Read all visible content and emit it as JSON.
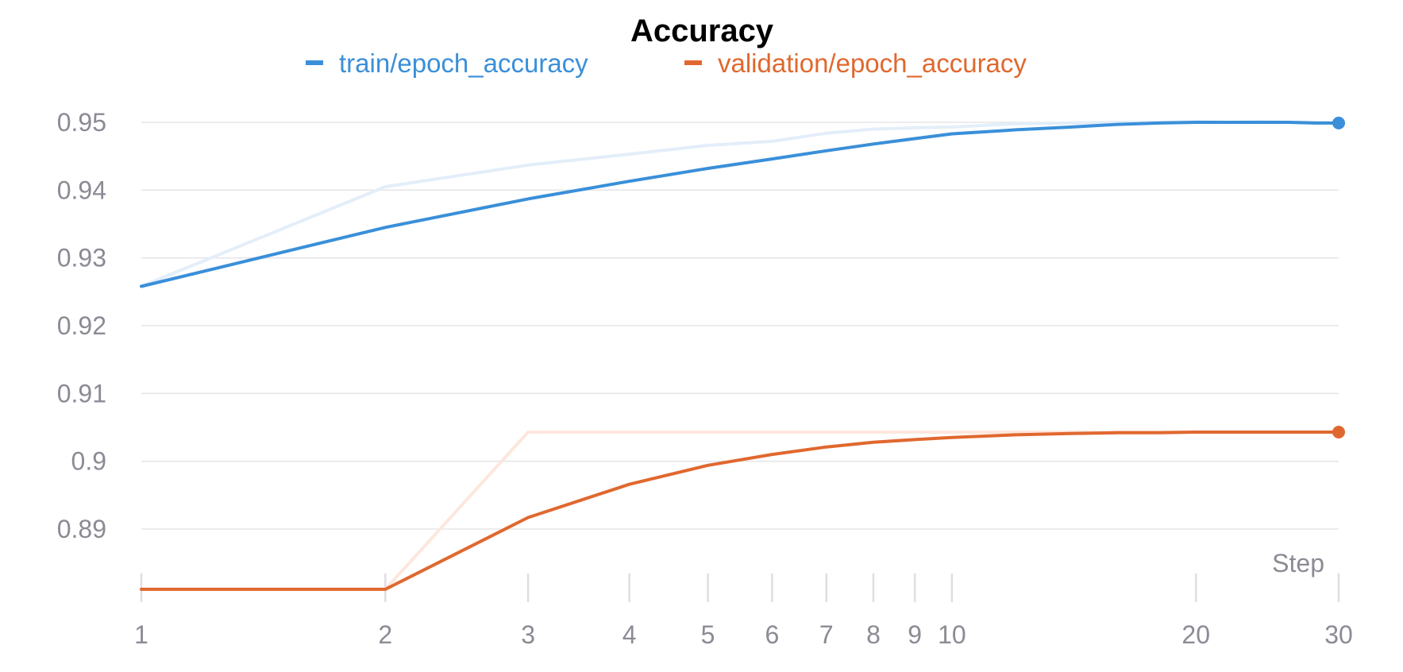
{
  "chart_data": {
    "type": "line",
    "title": "Accuracy",
    "xlabel": "Step",
    "ylabel": "",
    "x_scale": "log",
    "xlim": [
      1,
      30
    ],
    "ylim": [
      0.88,
      0.955
    ],
    "x_ticks": [
      "1",
      "2",
      "3",
      "4",
      "5",
      "6",
      "7",
      "8",
      "9",
      "10",
      "20",
      "30"
    ],
    "y_ticks": [
      "0.89",
      "0.9",
      "0.91",
      "0.92",
      "0.93",
      "0.94",
      "0.95"
    ],
    "grid": true,
    "legend_position": "top",
    "series": [
      {
        "name": "train/epoch_accuracy",
        "color": "#3a8fd9",
        "raw_color": "#e3eef9",
        "smoothed": {
          "x": [
            1,
            2,
            3,
            4,
            5,
            6,
            7,
            8,
            9,
            10,
            12,
            14,
            16,
            18,
            20,
            22,
            24,
            26,
            28,
            30
          ],
          "y": [
            0.9258,
            0.9345,
            0.9387,
            0.9413,
            0.9432,
            0.9446,
            0.9458,
            0.9468,
            0.9476,
            0.9483,
            0.9489,
            0.9493,
            0.9497,
            0.9499,
            0.95,
            0.95,
            0.95,
            0.95,
            0.9499,
            0.9499
          ]
        },
        "raw": {
          "x": [
            1,
            2,
            3,
            4,
            5,
            6,
            7,
            8,
            9,
            10,
            12,
            14,
            16,
            18,
            20,
            22,
            24,
            26,
            28,
            30
          ],
          "y": [
            0.9258,
            0.9405,
            0.9437,
            0.9453,
            0.9466,
            0.9472,
            0.9484,
            0.949,
            0.9492,
            0.9493,
            0.9498,
            0.9499,
            0.95,
            0.95,
            0.9501,
            0.95,
            0.9501,
            0.95,
            0.95,
            0.9499
          ]
        }
      },
      {
        "name": "validation/epoch_accuracy",
        "color": "#e0682f",
        "raw_color": "#fde7dc",
        "smoothed": {
          "x": [
            1,
            2,
            3,
            4,
            5,
            6,
            7,
            8,
            9,
            10,
            12,
            14,
            16,
            18,
            20,
            22,
            24,
            26,
            28,
            30
          ],
          "y": [
            0.8811,
            0.8811,
            0.8917,
            0.8966,
            0.8994,
            0.901,
            0.9021,
            0.9028,
            0.9032,
            0.9035,
            0.9039,
            0.9041,
            0.9042,
            0.9042,
            0.9043,
            0.9043,
            0.9043,
            0.9043,
            0.9043,
            0.9043
          ]
        },
        "raw": {
          "x": [
            1,
            2,
            3,
            30
          ],
          "y": [
            0.8811,
            0.8811,
            0.9043,
            0.9043
          ]
        }
      }
    ]
  }
}
